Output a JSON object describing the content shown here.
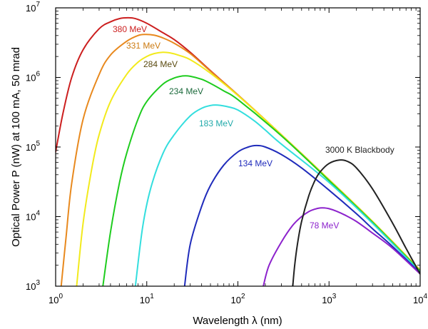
{
  "chart_data": {
    "type": "line",
    "title": "",
    "xlabel": "Wavelength λ (nm)",
    "ylabel": "Optical Power P (nW) at 100 mA, 50 mrad",
    "xscale": "log",
    "yscale": "log",
    "xlim": [
      1,
      10000
    ],
    "ylim": [
      1000,
      10000000
    ],
    "grid": false,
    "x_ticks": [
      {
        "base": "10",
        "exp": "0"
      },
      {
        "base": "10",
        "exp": "1"
      },
      {
        "base": "10",
        "exp": "2"
      },
      {
        "base": "10",
        "exp": "3"
      },
      {
        "base": "10",
        "exp": "4"
      }
    ],
    "y_ticks": [
      {
        "base": "10",
        "exp": "3"
      },
      {
        "base": "10",
        "exp": "4"
      },
      {
        "base": "10",
        "exp": "5"
      },
      {
        "base": "10",
        "exp": "6"
      },
      {
        "base": "10",
        "exp": "7"
      }
    ],
    "series": [
      {
        "name": "380 MeV",
        "color": "#cc1f1f",
        "x": [
          1,
          1.2,
          1.5,
          2,
          3,
          4,
          5,
          6.2,
          7.5,
          10,
          15,
          20,
          30,
          50,
          100,
          300,
          1000,
          3000,
          10000
        ],
        "y": [
          85000,
          300000,
          1000000,
          2500000,
          5000000,
          6300000,
          7000000,
          7200000,
          7000000,
          6000000,
          4400000,
          3500000,
          2300000,
          1250000,
          560000,
          150000,
          34000,
          8500,
          1700
        ]
      },
      {
        "name": "331 MeV",
        "color": "#e8891e",
        "x": [
          1.15,
          1.3,
          1.5,
          2,
          3,
          4,
          6,
          8,
          9.6,
          12,
          15,
          20,
          30,
          50,
          100,
          300,
          1000,
          3000,
          10000
        ],
        "y": [
          1000,
          5000,
          30000,
          250000,
          1100000,
          2100000,
          3300000,
          4000000,
          4150000,
          4050000,
          3700000,
          3100000,
          2200000,
          1230000,
          560000,
          150000,
          34000,
          8500,
          1700
        ]
      },
      {
        "name": "284 MeV",
        "color": "#f2ea1c",
        "x": [
          1.7,
          2,
          2.5,
          3,
          4,
          6,
          8,
          10,
          12,
          15,
          18,
          22,
          30,
          50,
          100,
          300,
          1000,
          3000,
          10000
        ],
        "y": [
          1000,
          8000,
          50000,
          150000,
          450000,
          1100000,
          1650000,
          2000000,
          2200000,
          2300000,
          2250000,
          2100000,
          1800000,
          1150000,
          550000,
          150000,
          34000,
          8500,
          1700
        ]
      },
      {
        "name": "234 MeV",
        "color": "#1ecc1e",
        "x": [
          3.3,
          4,
          5,
          6,
          8,
          10,
          15,
          20,
          25,
          30,
          40,
          50,
          70,
          100,
          300,
          1000,
          3000,
          10000
        ],
        "y": [
          1000,
          6000,
          30000,
          80000,
          250000,
          450000,
          800000,
          980000,
          1050000,
          1040000,
          940000,
          820000,
          640000,
          480000,
          145000,
          33000,
          8300,
          1650
        ]
      },
      {
        "name": "183 MeV",
        "color": "#33dede",
        "x": [
          7.5,
          9,
          11,
          15,
          20,
          30,
          40,
          50,
          60,
          80,
          100,
          150,
          200,
          300,
          1000,
          3000,
          10000
        ],
        "y": [
          1000,
          7000,
          25000,
          80000,
          150000,
          280000,
          360000,
          395000,
          400000,
          375000,
          340000,
          240000,
          175000,
          110000,
          31000,
          8000,
          1600
        ]
      },
      {
        "name": "134 MeV",
        "color": "#1f2bbb",
        "x": [
          26,
          30,
          40,
          50,
          70,
          100,
          130,
          160,
          200,
          300,
          500,
          1000,
          2000,
          3000,
          5000,
          10000
        ],
        "y": [
          1000,
          4000,
          14000,
          28000,
          55000,
          85000,
          100000,
          105000,
          100000,
          78000,
          50000,
          24000,
          11000,
          6700,
          3700,
          1550
        ]
      },
      {
        "name": "78 MeV",
        "color": "#8c22cc",
        "x": [
          190,
          220,
          300,
          400,
          500,
          600,
          700,
          800,
          900,
          1000,
          1200,
          1500,
          2000,
          3000,
          5000,
          10000
        ],
        "y": [
          1000,
          2000,
          4300,
          7500,
          10000,
          11800,
          12800,
          13300,
          13300,
          13000,
          12000,
          10500,
          8500,
          5800,
          3500,
          1500
        ]
      },
      {
        "name": "3000 K Blackbody",
        "color": "#222222",
        "x": [
          400,
          420,
          450,
          500,
          600,
          700,
          800,
          1000,
          1300,
          1600,
          2000,
          3000,
          5000,
          7000,
          10000
        ],
        "y": [
          1000,
          2000,
          4000,
          8500,
          20000,
          33000,
          44000,
          58000,
          65000,
          62000,
          50000,
          25000,
          8000,
          3500,
          1500
        ]
      }
    ]
  }
}
